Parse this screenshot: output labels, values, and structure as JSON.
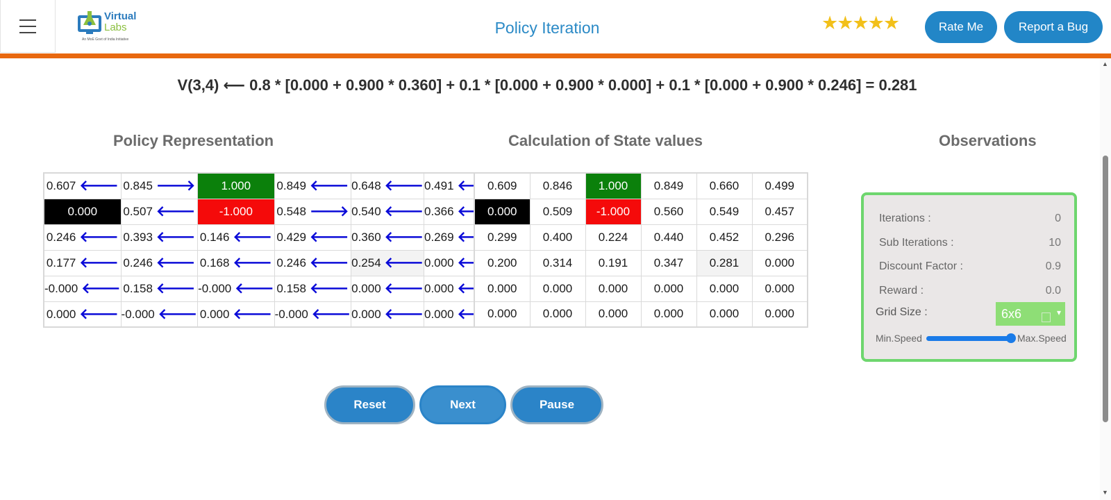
{
  "header": {
    "logo_line1": "Virtual",
    "logo_line2": "Labs",
    "logo_tagline": "An MoE Govt of India Initiative",
    "title": "Policy Iteration",
    "rating_stars": 5,
    "stars_text": "★★★★★",
    "rate_label": "Rate Me",
    "bug_label": "Report a Bug"
  },
  "equation": "V(3,4) ⟵ 0.8 * [0.000 + 0.900 * 0.360] + 0.1 * [0.000 + 0.900 * 0.000] + 0.1 * [0.000 + 0.900 * 0.246] = 0.281",
  "sections": {
    "policy_title": "Policy Representation",
    "state_title": "Calculation of State values",
    "obs_title": "Observations"
  },
  "policy_grid": [
    [
      {
        "v": "0.607",
        "a": "left"
      },
      {
        "v": "0.845",
        "a": "right"
      },
      {
        "v": "1.000",
        "a": "",
        "t": "goal"
      },
      {
        "v": "0.849",
        "a": "left"
      },
      {
        "v": "0.648",
        "a": "left"
      },
      {
        "v": "0.491",
        "a": "left"
      }
    ],
    [
      {
        "v": "0.000",
        "a": "",
        "t": "wall"
      },
      {
        "v": "0.507",
        "a": "left"
      },
      {
        "v": "-1.000",
        "a": "",
        "t": "pit"
      },
      {
        "v": "0.548",
        "a": "right"
      },
      {
        "v": "0.540",
        "a": "left"
      },
      {
        "v": "0.366",
        "a": "left"
      }
    ],
    [
      {
        "v": "0.246",
        "a": "left"
      },
      {
        "v": "0.393",
        "a": "left"
      },
      {
        "v": "0.146",
        "a": "left"
      },
      {
        "v": "0.429",
        "a": "left"
      },
      {
        "v": "0.360",
        "a": "left"
      },
      {
        "v": "0.269",
        "a": "left"
      }
    ],
    [
      {
        "v": "0.177",
        "a": "left"
      },
      {
        "v": "0.246",
        "a": "left"
      },
      {
        "v": "0.168",
        "a": "left"
      },
      {
        "v": "0.246",
        "a": "left"
      },
      {
        "v": "0.254",
        "a": "left",
        "t": "hl"
      },
      {
        "v": "0.000",
        "a": "left"
      }
    ],
    [
      {
        "v": "-0.000",
        "a": "left"
      },
      {
        "v": "0.158",
        "a": "left"
      },
      {
        "v": "-0.000",
        "a": "left"
      },
      {
        "v": "0.158",
        "a": "left"
      },
      {
        "v": "0.000",
        "a": "left"
      },
      {
        "v": "0.000",
        "a": "left"
      }
    ],
    [
      {
        "v": "0.000",
        "a": "left"
      },
      {
        "v": "-0.000",
        "a": "left"
      },
      {
        "v": "0.000",
        "a": "left"
      },
      {
        "v": "-0.000",
        "a": "left"
      },
      {
        "v": "0.000",
        "a": "left"
      },
      {
        "v": "0.000",
        "a": "left"
      }
    ]
  ],
  "state_grid": [
    [
      {
        "v": "0.609"
      },
      {
        "v": "0.846"
      },
      {
        "v": "1.000",
        "t": "goal"
      },
      {
        "v": "0.849"
      },
      {
        "v": "0.660"
      },
      {
        "v": "0.499"
      }
    ],
    [
      {
        "v": "0.000",
        "t": "wall"
      },
      {
        "v": "0.509"
      },
      {
        "v": "-1.000",
        "t": "pit"
      },
      {
        "v": "0.560"
      },
      {
        "v": "0.549"
      },
      {
        "v": "0.457"
      }
    ],
    [
      {
        "v": "0.299"
      },
      {
        "v": "0.400"
      },
      {
        "v": "0.224"
      },
      {
        "v": "0.440"
      },
      {
        "v": "0.452"
      },
      {
        "v": "0.296"
      }
    ],
    [
      {
        "v": "0.200"
      },
      {
        "v": "0.314"
      },
      {
        "v": "0.191"
      },
      {
        "v": "0.347"
      },
      {
        "v": "0.281",
        "t": "hl"
      },
      {
        "v": "0.000"
      }
    ],
    [
      {
        "v": "0.000"
      },
      {
        "v": "0.000"
      },
      {
        "v": "0.000"
      },
      {
        "v": "0.000"
      },
      {
        "v": "0.000"
      },
      {
        "v": "0.000"
      }
    ],
    [
      {
        "v": "0.000"
      },
      {
        "v": "0.000"
      },
      {
        "v": "0.000"
      },
      {
        "v": "0.000"
      },
      {
        "v": "0.000"
      },
      {
        "v": "0.000"
      }
    ]
  ],
  "arrows": {
    "left": "🡐",
    "right": "🡒"
  },
  "observations": {
    "iterations_label": "Iterations :",
    "iterations_value": "0",
    "sub_iterations_label": "Sub Iterations :",
    "sub_iterations_value": "10",
    "discount_label": "Discount Factor :",
    "discount_value": "0.9",
    "reward_label": "Reward :",
    "reward_value": "0.0",
    "grid_size_label": "Grid Size :",
    "grid_size_value": "6x6",
    "speed_min_label": "Min.Speed",
    "speed_max_label": "Max.Speed",
    "speed_level": 1.0
  },
  "controls": {
    "reset_label": "Reset",
    "next_label": "Next",
    "pause_label": "Pause"
  },
  "colors": {
    "accent": "#2286c7",
    "header_bar": "#e8680f",
    "goal": "#0b800b",
    "pit": "#f50a0a",
    "wall": "#000000",
    "arrow": "#0a0ad8",
    "obs_border": "#6ed66e"
  }
}
